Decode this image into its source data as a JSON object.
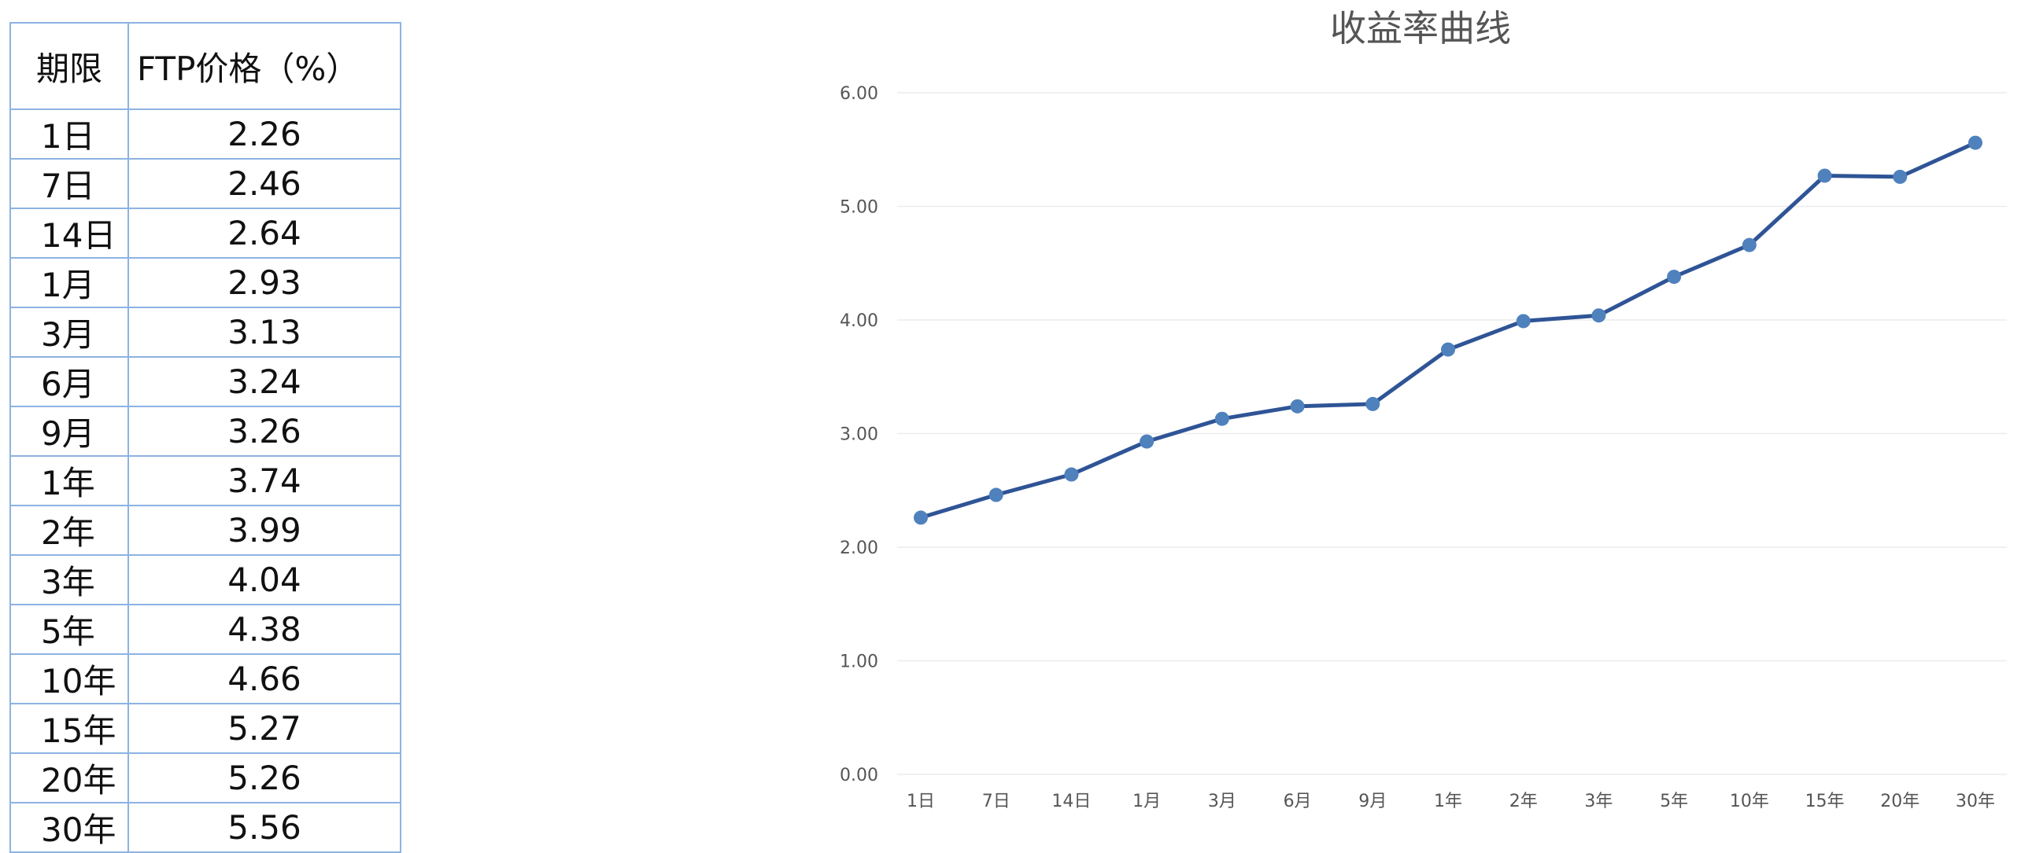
{
  "table": {
    "headers": [
      "期限",
      "FTP价格（%）"
    ],
    "rows": [
      [
        "1日",
        "2.26"
      ],
      [
        "7日",
        "2.46"
      ],
      [
        "14日",
        "2.64"
      ],
      [
        "1月",
        "2.93"
      ],
      [
        "3月",
        "3.13"
      ],
      [
        "6月",
        "3.24"
      ],
      [
        "9月",
        "3.26"
      ],
      [
        "1年",
        "3.74"
      ],
      [
        "2年",
        "3.99"
      ],
      [
        "3年",
        "4.04"
      ],
      [
        "5年",
        "4.38"
      ],
      [
        "10年",
        "4.66"
      ],
      [
        "15年",
        "5.27"
      ],
      [
        "20年",
        "5.26"
      ],
      [
        "30年",
        "5.56"
      ]
    ]
  },
  "chart_data": {
    "type": "line",
    "title": "收益率曲线",
    "categories": [
      "1日",
      "7日",
      "14日",
      "1月",
      "3月",
      "6月",
      "9月",
      "1年",
      "2年",
      "3年",
      "5年",
      "10年",
      "15年",
      "20年",
      "30年"
    ],
    "series": [
      {
        "values": [
          2.26,
          2.46,
          2.64,
          2.93,
          3.13,
          3.24,
          3.26,
          3.74,
          3.99,
          4.04,
          4.38,
          4.66,
          5.27,
          5.26,
          5.56
        ]
      }
    ],
    "yticks": [
      "0.00",
      "1.00",
      "2.00",
      "3.00",
      "4.00",
      "5.00",
      "6.00"
    ],
    "ylim": [
      0,
      6
    ],
    "grid": true,
    "line_color": "#2f5496",
    "marker_color": "#4f81bd"
  }
}
